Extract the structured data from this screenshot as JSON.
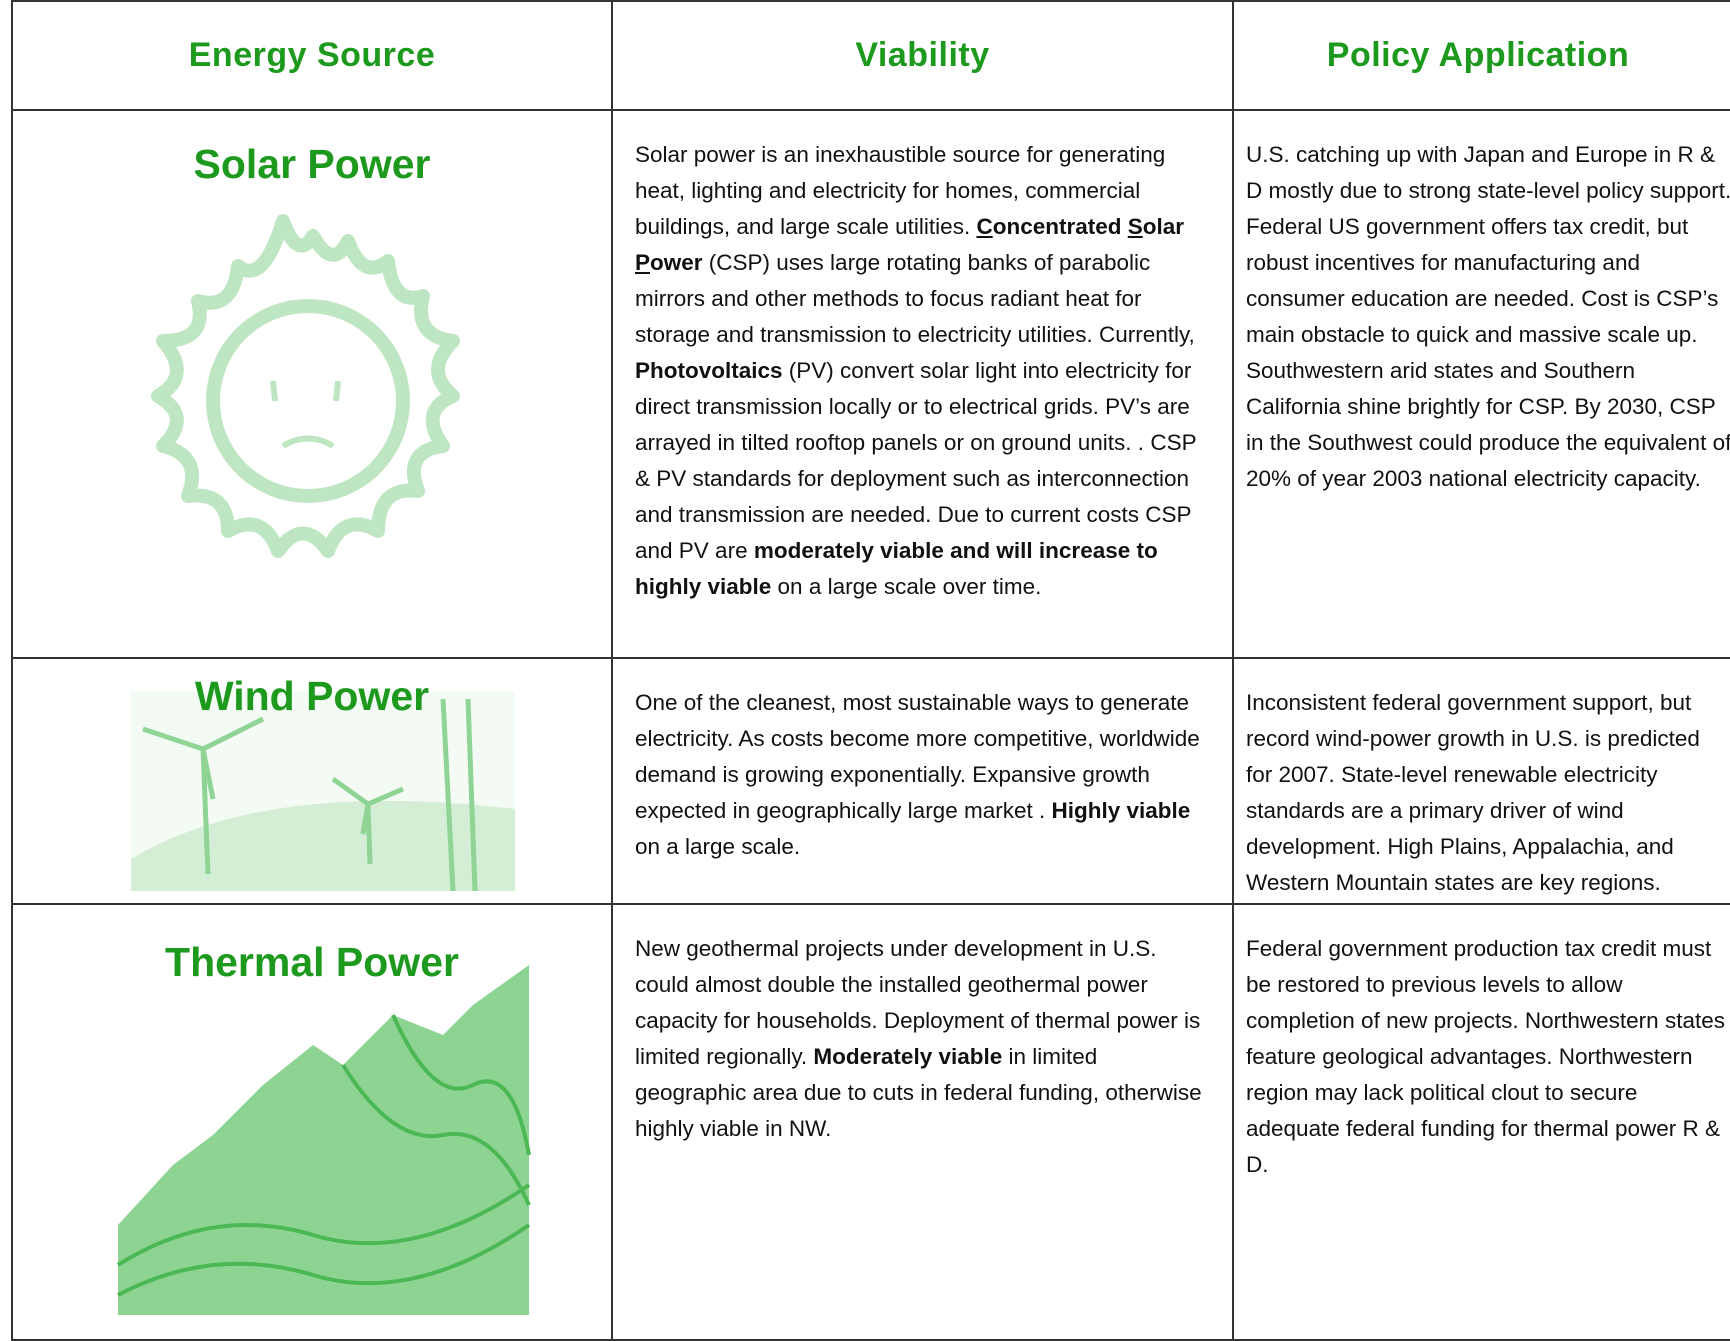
{
  "table": {
    "header": [
      "Energy Source",
      "Viability",
      "Policy Application"
    ],
    "rows": [
      {
        "source": "Solar Power",
        "viability": [
          {
            "text": "Solar power is an  inexhaustible source for generating heat, lighting and electricity for homes, commercial buildings, and large scale utilities.  "
          },
          {
            "text": "C",
            "style": "bold-underline"
          },
          {
            "text": "oncentrated ",
            "style": "bold"
          },
          {
            "text": "S",
            "style": "bold-underline"
          },
          {
            "text": "olar ",
            "style": "bold"
          },
          {
            "text": "P",
            "style": "bold-underline"
          },
          {
            "text": "ower",
            "style": "bold"
          },
          {
            "text": " (CSP) uses large rotating banks of parabolic mirrors and other methods to focus radiant heat for storage and transmission to electricity utilities. Currently, "
          },
          {
            "text": "Photovoltaics",
            "style": "bold"
          },
          {
            "text": " (PV) convert solar light into electricity for direct transmission locally or to electrical grids.  PV’s are arrayed in tilted rooftop panels or on ground units. . CSP & PV standards for deployment such as interconnection and transmission are needed. Due to current costs CSP and PV are "
          },
          {
            "text": "moderately viable and will increase to highly viable",
            "style": "bold"
          },
          {
            "text": " on a large scale over time."
          }
        ],
        "policy": "U.S. catching up with Japan and Europe in R & D mostly due to strong state-level policy support. Federal US government offers tax credit, but robust  incentives for manufacturing and consumer education are needed. Cost is CSP’s main obstacle to quick and massive scale up.  Southwestern arid states and Southern California shine brightly for CSP. By 2030, CSP in the Southwest could produce the equivalent of 20% of year 2003 national electricity capacity."
      },
      {
        "source": "Wind Power",
        "viability": [
          {
            "text": "One of the cleanest, most sustainable ways to generate electricity. As costs become more competitive, worldwide demand is growing exponentially. Expansive growth expected in geographically large market . "
          },
          {
            "text": "Highly viable",
            "style": "bold"
          },
          {
            "text": " on a large scale."
          }
        ],
        "policy": "Inconsistent federal government support, but record wind-power growth in U.S. is predicted for 2007. State-level renewable electricity standards are a primary driver of wind development. High Plains, Appalachia, and Western Mountain states are key regions."
      },
      {
        "source": "Thermal Power",
        "viability": [
          {
            "text": "New geothermal projects under development in U.S. could almost double the installed geothermal power capacity for households. Deployment of thermal power is limited regionally. "
          },
          {
            "text": "Moderately viable",
            "style": "bold"
          },
          {
            "text": " in limited geographic area due to cuts in federal funding, otherwise highly viable in NW."
          }
        ],
        "policy": "Federal government production tax credit must be restored to previous levels  to allow completion of new projects. Northwestern states feature geological advantages. Northwestern region may lack political clout to secure adequate federal funding for thermal power R & D."
      }
    ]
  }
}
